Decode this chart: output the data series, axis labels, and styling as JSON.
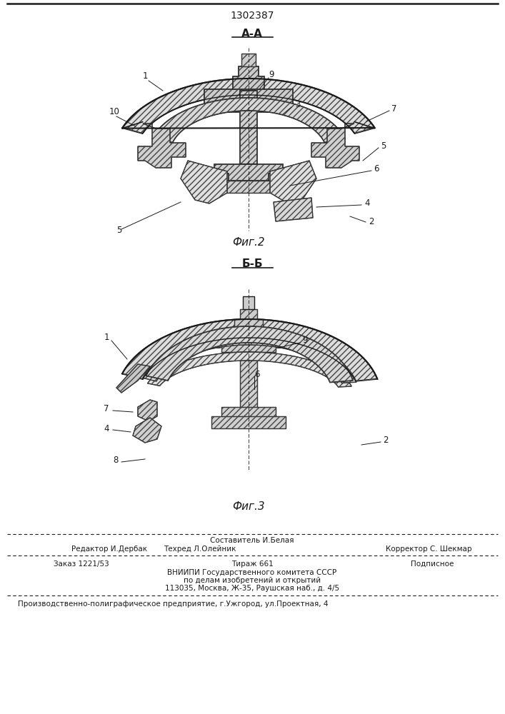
{
  "patent_number": "1302387",
  "fig2_label": "А-А",
  "fig2_caption": "Фиг.2",
  "fig3_label": "Б-Б",
  "fig3_caption": "Фиг.3",
  "footer_line1_left": "Редактор И.Дербак",
  "footer_line1_center_top": "Составитель И.Белая",
  "footer_line1_center_bot": "Техред Л.Олейник",
  "footer_line1_right": "Корректор С. Шекмар",
  "footer_line2_left": "Заказ 1221/53",
  "footer_line2_center": "Тираж 661",
  "footer_line2_right": "Подписное",
  "footer_line3": "ВНИИПИ Государственного комитета СССР",
  "footer_line4": "по делам изобретений и открытий",
  "footer_line5": "113035, Москва, Ж-35, Раушская наб., д. 4/5",
  "footer_bottom": "Производственно-полиграфическое предприятие, г.Ужгород, ул.Проектная, 4",
  "bg_color": "#ffffff",
  "line_color": "#1a1a1a",
  "hatch_color": "#444444"
}
